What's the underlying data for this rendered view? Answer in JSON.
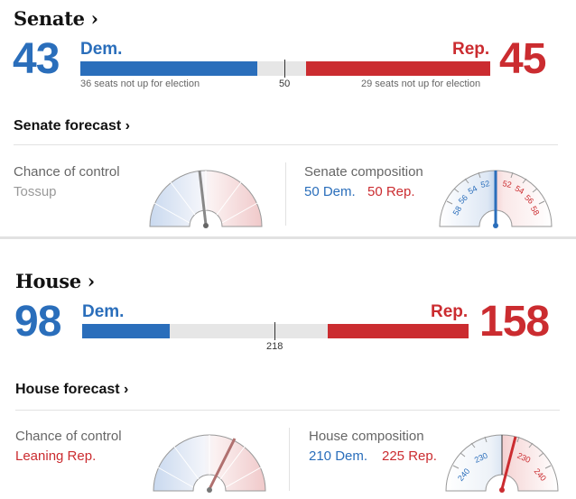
{
  "senate": {
    "title": "Senate ›",
    "dem_seats": "43",
    "rep_seats": "45",
    "dem_label": "Dem.",
    "rep_label": "Rep.",
    "dem_not_up": "36 seats not up for election",
    "rep_not_up": "29 seats not up for election",
    "majority": "50",
    "forecast_link": "Senate forecast ›",
    "chance_label": "Chance of control",
    "chance_value": "Tossup",
    "composition_label": "Senate composition",
    "composition_dem": "50 Dem.",
    "composition_rep": "50 Rep.",
    "gauge_ticks_left": [
      "58",
      "56",
      "54",
      "52"
    ],
    "gauge_ticks_right": [
      "52",
      "54",
      "56",
      "58"
    ]
  },
  "house": {
    "title": "House ›",
    "dem_seats": "98",
    "rep_seats": "158",
    "dem_label": "Dem.",
    "rep_label": "Rep.",
    "majority": "218",
    "forecast_link": "House forecast ›",
    "chance_label": "Chance of control",
    "chance_value": "Leaning Rep.",
    "composition_label": "House composition",
    "composition_dem": "210 Dem.",
    "composition_rep": "225 Rep.",
    "gauge_ticks_left": [
      "240",
      "230"
    ],
    "gauge_ticks_right": [
      "230",
      "240"
    ]
  },
  "colors": {
    "dem": "#2a6ebb",
    "rep": "#cb2c30",
    "tossup_gray": "#999999"
  },
  "gauges": {
    "senate_chance_needle": 0.53,
    "house_chance_needle": 0.72,
    "senate_composition_needle": 0.5,
    "house_composition_needle": 0.56
  }
}
